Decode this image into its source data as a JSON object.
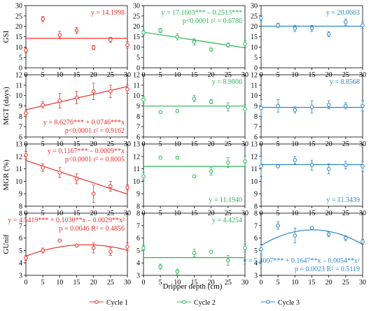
{
  "figure": {
    "xlabel": "Dripper depth (cm)",
    "legend": [
      {
        "label": "Cycle 1",
        "color": "#e8302a"
      },
      {
        "label": "Cycle 2",
        "color": "#2db35a"
      },
      {
        "label": "Cycle 3",
        "color": "#2e86c8"
      }
    ]
  },
  "chart_data": [
    {
      "type": "scatter",
      "row": "GSI",
      "cycle": "Cycle 1",
      "color": "#e8302a",
      "ylabel": "GSI",
      "ylim": [
        0,
        30
      ],
      "yticks": [
        0,
        5,
        10,
        15,
        20,
        25,
        30
      ],
      "xticks": [
        0,
        5,
        10,
        15,
        20,
        25,
        30
      ],
      "x": [
        0,
        5,
        10,
        15,
        20,
        25,
        30
      ],
      "values": [
        8.5,
        23.5,
        15.8,
        18,
        9.8,
        13.5,
        11
      ],
      "errors": [
        1.2,
        1.3,
        1.8,
        1.5,
        1,
        1.2,
        1.5
      ],
      "fit": {
        "kind": "const",
        "coef": [
          14.1998
        ]
      },
      "equation": [
        "y = 14.1998"
      ],
      "eq_anchor": "top-right"
    },
    {
      "type": "scatter",
      "row": "GSI",
      "cycle": "Cycle 2",
      "color": "#2db35a",
      "ylabel": "",
      "ylim": [
        0,
        30
      ],
      "yticks": [
        0,
        5,
        10,
        15,
        20,
        25,
        30
      ],
      "xticks": [
        0,
        5,
        10,
        15,
        20,
        25,
        30
      ],
      "x": [
        0,
        5,
        10,
        15,
        20,
        25,
        30
      ],
      "values": [
        17,
        18,
        15,
        12.5,
        8.8,
        11,
        11.5
      ],
      "errors": [
        1.2,
        1,
        1.5,
        1.5,
        0.8,
        1,
        1.5
      ],
      "fit": {
        "kind": "poly",
        "coef": [
          17.1603,
          -0.2513
        ]
      },
      "equation": [
        "y = 17.1603*** – 0.2513***",
        "p<0.0001     r² = 0.6786"
      ],
      "eq_anchor": "top-right"
    },
    {
      "type": "scatter",
      "row": "GSI",
      "cycle": "Cycle 3",
      "color": "#2e86c8",
      "ylabel": "",
      "ylim": [
        0,
        30
      ],
      "yticks": [
        0,
        5,
        10,
        15,
        20,
        25,
        30
      ],
      "xticks": [
        0,
        5,
        10,
        15,
        20,
        25,
        30
      ],
      "x": [
        0,
        5,
        10,
        15,
        20,
        25,
        30
      ],
      "values": [
        24,
        20.5,
        19,
        19,
        16.2,
        22,
        20.5
      ],
      "errors": [
        1.2,
        1,
        1.5,
        1.5,
        1.2,
        1.5,
        1.5
      ],
      "fit": {
        "kind": "const",
        "coef": [
          20.0663
        ]
      },
      "equation": [
        "y = 20.0663"
      ],
      "eq_anchor": "top-right"
    },
    {
      "type": "scatter",
      "row": "MGT",
      "cycle": "Cycle 1",
      "color": "#e8302a",
      "ylabel": "MGT (days)",
      "ylim": [
        6,
        12
      ],
      "yticks": [
        6,
        7,
        8,
        9,
        10,
        11,
        12
      ],
      "xticks": [
        0,
        5,
        10,
        15,
        20,
        25,
        30
      ],
      "x": [
        0,
        5,
        10,
        15,
        20,
        25,
        30
      ],
      "values": [
        8.3,
        9.1,
        9.5,
        9.8,
        10.4,
        10.4,
        10.6
      ],
      "errors": [
        0.3,
        0.3,
        0.7,
        0.6,
        0.8,
        0.6,
        0.4
      ],
      "fit": {
        "kind": "poly",
        "coef": [
          8.6276,
          0.0746
        ]
      },
      "equation": [
        "y = 8.6276*** + 0.0746***x",
        "p<0.0001     r² = 0.9162"
      ],
      "eq_anchor": "bottom-right"
    },
    {
      "type": "scatter",
      "row": "MGT",
      "cycle": "Cycle 2",
      "color": "#2db35a",
      "ylabel": "",
      "ylim": [
        6,
        12
      ],
      "yticks": [
        6,
        7,
        8,
        9,
        10,
        11,
        12
      ],
      "xticks": [
        0,
        5,
        10,
        15,
        20,
        25,
        30
      ],
      "x": [
        0,
        5,
        10,
        15,
        20,
        25,
        30
      ],
      "values": [
        9.6,
        8.4,
        8.5,
        9.7,
        9.4,
        8.9,
        8.7
      ],
      "errors": [
        0.3,
        0.1,
        0.1,
        0.3,
        0.2,
        0.4,
        0.4
      ],
      "fit": {
        "kind": "const",
        "coef": [
          8.9806
        ]
      },
      "equation": [
        "y = 8.9806"
      ],
      "eq_anchor": "top-right"
    },
    {
      "type": "scatter",
      "row": "MGT",
      "cycle": "Cycle 3",
      "color": "#2e86c8",
      "ylabel": "",
      "ylim": [
        6,
        12
      ],
      "yticks": [
        6,
        7,
        8,
        9,
        10,
        11,
        12
      ],
      "xticks": [
        0,
        5,
        10,
        15,
        20,
        25,
        30
      ],
      "x": [
        0,
        5,
        10,
        15,
        20,
        25,
        30
      ],
      "values": [
        8.8,
        9,
        8.6,
        8.9,
        9.1,
        9,
        9
      ],
      "errors": [
        0.8,
        0.6,
        0.3,
        0.6,
        0.4,
        0.3,
        0.5
      ],
      "fit": {
        "kind": "const",
        "coef": [
          8.8568
        ]
      },
      "equation": [
        "y = 8.8568"
      ],
      "eq_anchor": "top-right"
    },
    {
      "type": "scatter",
      "row": "MGR",
      "cycle": "Cycle 1",
      "color": "#e8302a",
      "ylabel": "MGR (%)",
      "ylim": [
        8,
        13
      ],
      "yticks": [
        8,
        9,
        10,
        11,
        12,
        13
      ],
      "xticks": [
        0,
        5,
        10,
        15,
        20,
        25,
        30
      ],
      "x": [
        0,
        5,
        10,
        15,
        20,
        25,
        30
      ],
      "values": [
        12.1,
        11.1,
        10.7,
        10.2,
        9,
        9.6,
        9.5
      ],
      "errors": [
        0.3,
        0.3,
        0.4,
        0.4,
        0.7,
        0.4,
        0.2
      ],
      "fit": {
        "kind": "poly",
        "coef": [
          0.1167,
          -0.0009
        ],
        "scaled": true
      },
      "equation": [
        "y = 0.1167*** – 0.0009**x",
        "p<0.0001      r² = 0.8005"
      ],
      "eq_anchor": "top-right"
    },
    {
      "type": "scatter",
      "row": "MGR",
      "cycle": "Cycle 2",
      "color": "#2db35a",
      "ylabel": "",
      "ylim": [
        8,
        13
      ],
      "yticks": [
        8,
        9,
        10,
        11,
        12,
        13
      ],
      "xticks": [
        0,
        5,
        10,
        15,
        20,
        25,
        30
      ],
      "x": [
        0,
        5,
        10,
        15,
        20,
        25,
        30
      ],
      "values": [
        10.4,
        11.9,
        11.9,
        10.4,
        10.8,
        11.5,
        11.6
      ],
      "errors": [
        0.3,
        0.1,
        0.1,
        0.1,
        0.3,
        0.4,
        0.4
      ],
      "fit": {
        "kind": "const",
        "coef": [
          11.194
        ]
      },
      "equation": [
        "y = 11.1940"
      ],
      "eq_anchor": "bottom-right"
    },
    {
      "type": "scatter",
      "row": "MGR",
      "cycle": "Cycle 3",
      "color": "#2e86c8",
      "ylabel": "",
      "ylim": [
        8,
        13
      ],
      "yticks": [
        8,
        9,
        10,
        11,
        12,
        13
      ],
      "xticks": [
        0,
        5,
        10,
        15,
        20,
        25,
        30
      ],
      "x": [
        0,
        5,
        10,
        15,
        20,
        25,
        30
      ],
      "values": [
        11.2,
        11.2,
        11.7,
        11.3,
        11,
        11.3,
        11.2
      ],
      "errors": [
        0.8,
        0.1,
        0.3,
        0.4,
        0.4,
        0.3,
        0.4
      ],
      "fit": {
        "kind": "const",
        "coef": [
          11.3439
        ]
      },
      "equation": [
        "y = 11.3439"
      ],
      "eq_anchor": "bottom-right"
    },
    {
      "type": "scatter",
      "row": "GUnif",
      "cycle": "Cycle 1",
      "color": "#e8302a",
      "ylabel": "GUnif",
      "ylim": [
        3,
        8
      ],
      "yticks": [
        3,
        4,
        5,
        6,
        7,
        8
      ],
      "xticks": [
        0,
        5,
        10,
        15,
        20,
        25,
        30
      ],
      "x": [
        0,
        5,
        10,
        15,
        20,
        25,
        30
      ],
      "values": [
        4.4,
        5,
        5.8,
        5.4,
        5.2,
        4.9,
        5.3
      ],
      "errors": [
        0.2,
        0.2,
        0.1,
        0.1,
        0.4,
        0.3,
        0.3
      ],
      "fit": {
        "kind": "poly",
        "coef": [
          4.5419,
          0.103,
          -0.0029
        ]
      },
      "equation": [
        "y = 4.5419*** + 0.1030**x – 0.0029**x²",
        "p = 0.0046      R² = 0.4856"
      ],
      "eq_anchor": "top-right"
    },
    {
      "type": "scatter",
      "row": "GUnif",
      "cycle": "Cycle 2",
      "color": "#2db35a",
      "ylabel": "",
      "ylim": [
        3,
        8
      ],
      "yticks": [
        3,
        4,
        5,
        6,
        7,
        8
      ],
      "xticks": [
        0,
        5,
        10,
        15,
        20,
        25,
        30
      ],
      "x": [
        0,
        5,
        10,
        15,
        20,
        25,
        30
      ],
      "values": [
        5.2,
        3.7,
        3.3,
        4.8,
        4.9,
        4.2,
        5.2
      ],
      "errors": [
        0.2,
        0.2,
        0.2,
        0.3,
        0.1,
        0.4,
        0.3
      ],
      "fit": {
        "kind": "const",
        "coef": [
          4.4254
        ]
      },
      "equation": [
        "y = 4.4254"
      ],
      "eq_anchor": "top-right"
    },
    {
      "type": "scatter",
      "row": "GUnif",
      "cycle": "Cycle 3",
      "color": "#2e86c8",
      "ylabel": "",
      "ylim": [
        3,
        8
      ],
      "yticks": [
        3,
        4,
        5,
        6,
        7,
        8
      ],
      "xticks": [
        0,
        5,
        10,
        15,
        20,
        25,
        30
      ],
      "x": [
        0,
        5,
        10,
        15,
        20,
        25,
        30
      ],
      "values": [
        5.1,
        7,
        6.2,
        6.8,
        6.3,
        6,
        5.7
      ],
      "errors": [
        0.4,
        0.3,
        0.6,
        0.1,
        0.2,
        0.2,
        0.2
      ],
      "fit": {
        "kind": "poly",
        "coef": [
          5.4007,
          0.1647,
          -0.0054
        ]
      },
      "equation": [
        "y = 5.4007*** + 0.1647**x – 0.0054**x²",
        "p = 0.0023     R² = 0.5119"
      ],
      "eq_anchor": "bottom-right"
    }
  ]
}
